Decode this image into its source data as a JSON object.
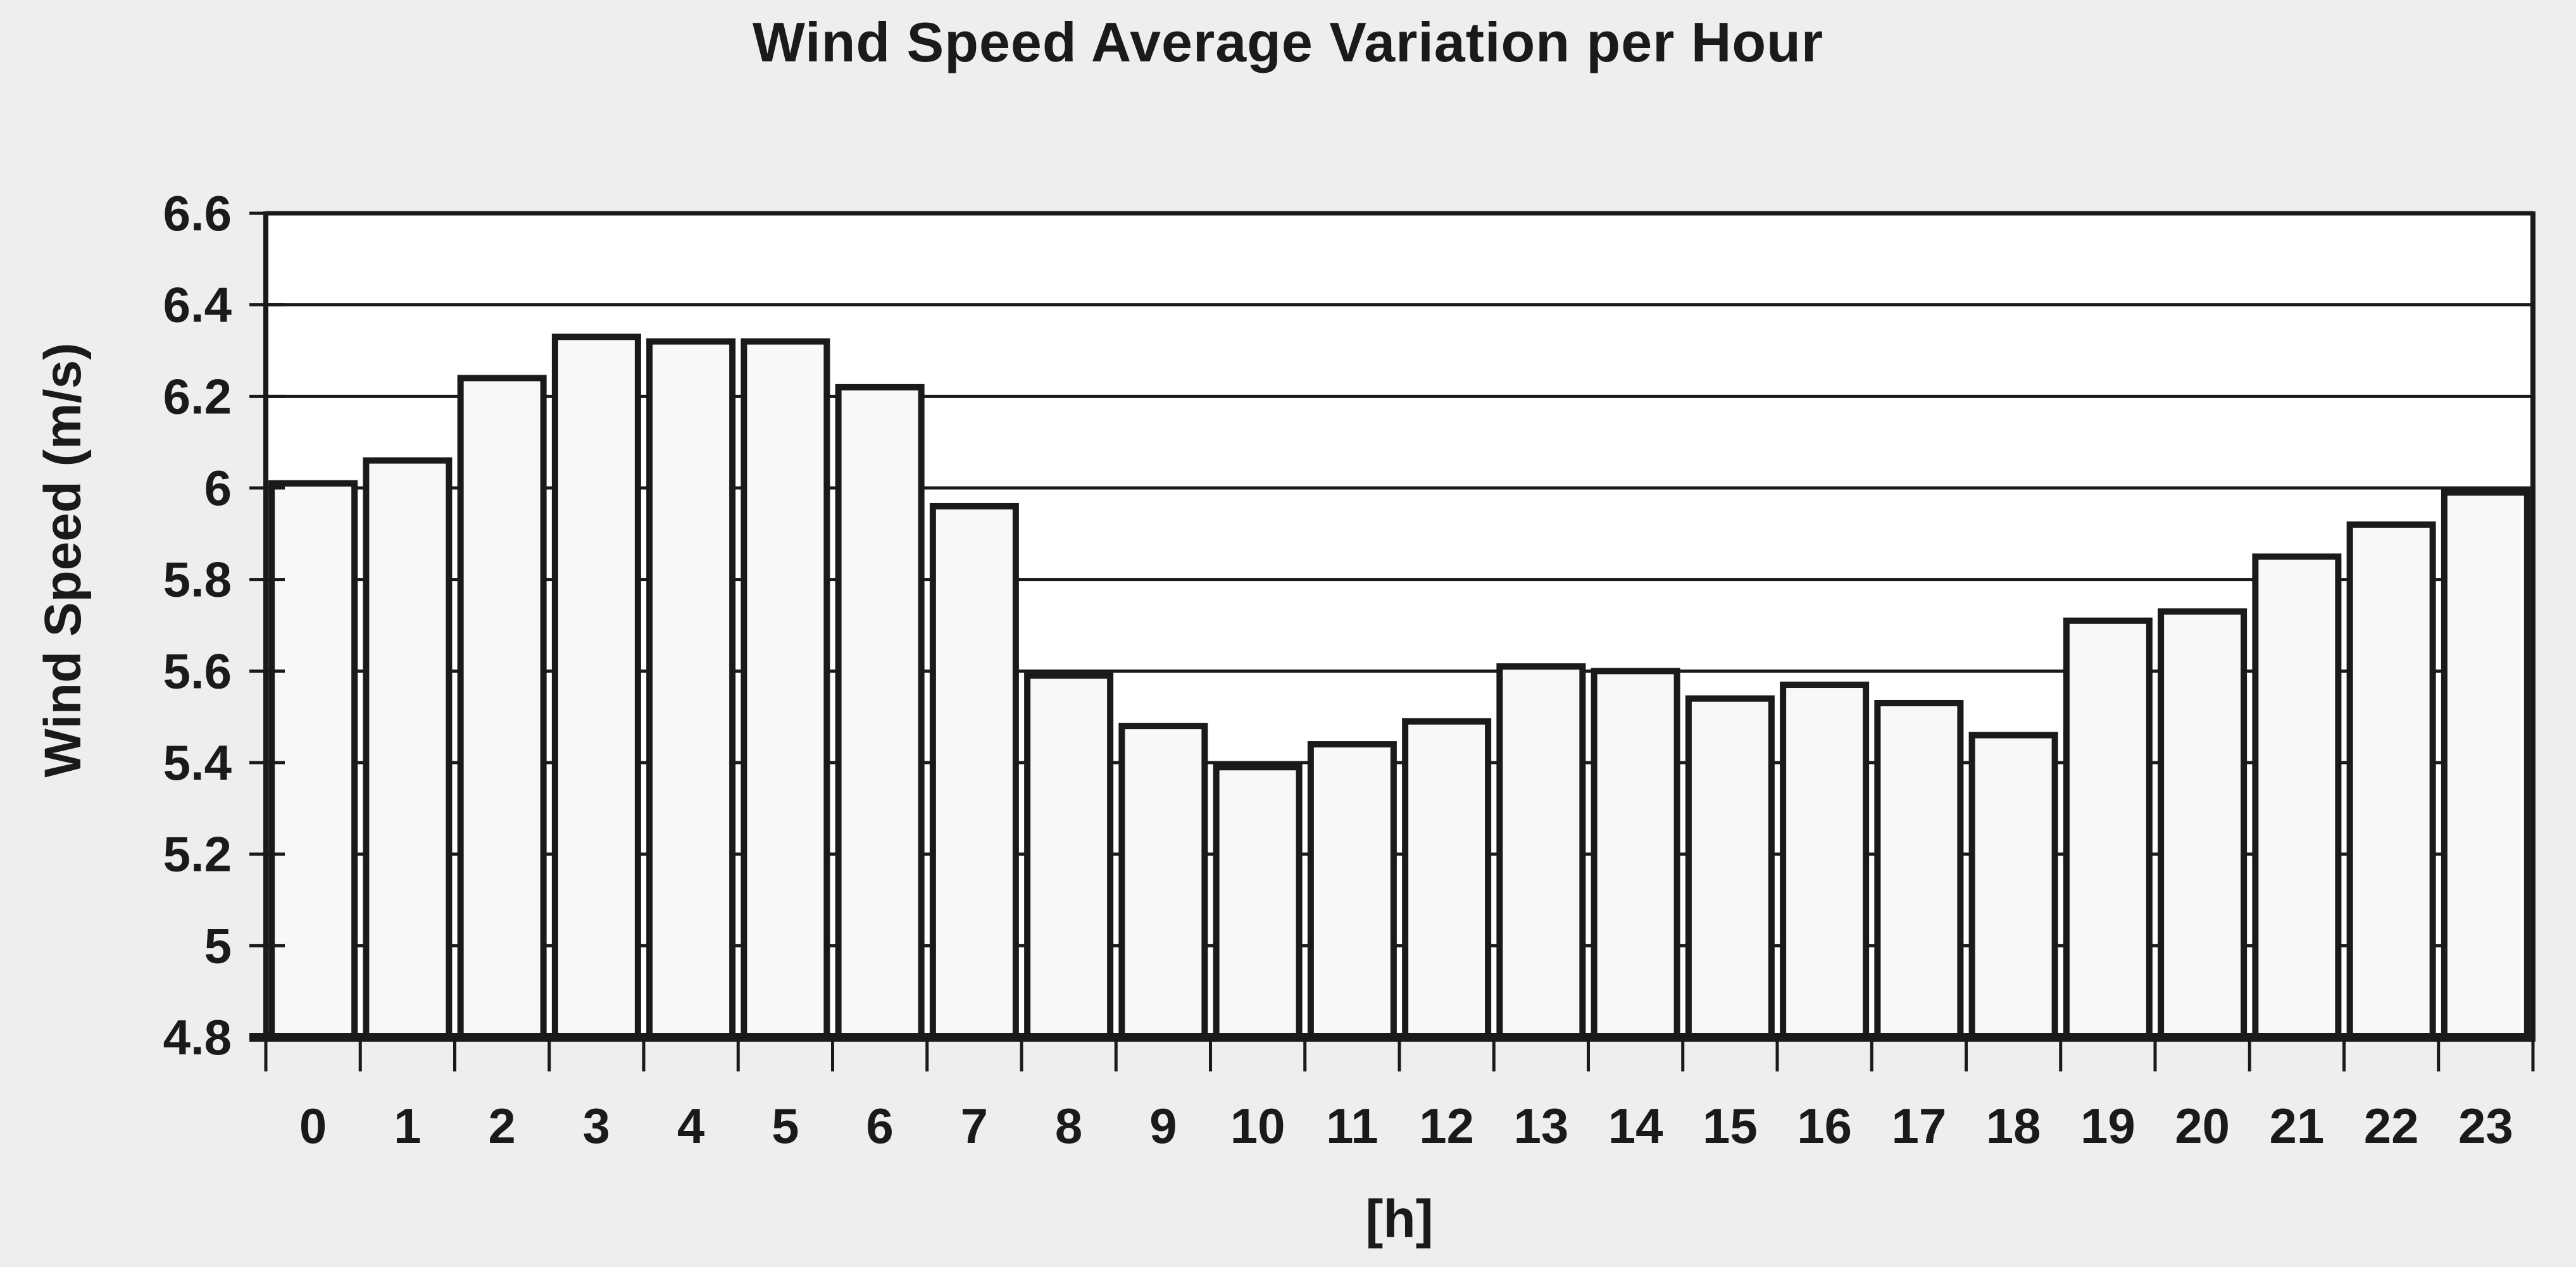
{
  "chart_data": {
    "type": "bar",
    "title": "Wind Speed Average Variation per Hour",
    "xlabel": "[h]",
    "ylabel": "Wind Speed (m/s)",
    "categories": [
      "0",
      "1",
      "2",
      "3",
      "4",
      "5",
      "6",
      "7",
      "8",
      "9",
      "10",
      "11",
      "12",
      "13",
      "14",
      "15",
      "16",
      "17",
      "18",
      "19",
      "20",
      "21",
      "22",
      "23"
    ],
    "values": [
      6.01,
      6.06,
      6.24,
      6.33,
      6.32,
      6.32,
      6.22,
      5.96,
      5.59,
      5.48,
      5.39,
      5.44,
      5.49,
      5.61,
      5.6,
      5.54,
      5.57,
      5.53,
      5.46,
      5.71,
      5.73,
      5.85,
      5.92,
      5.99
    ],
    "ylim": [
      4.8,
      6.6
    ],
    "ytick_step": 0.2,
    "ytick_values": [
      6.6,
      6.4,
      6.2,
      6.0,
      5.8,
      5.6,
      5.4,
      5.2,
      5.0,
      4.8
    ],
    "ytick_labels": [
      "6.6",
      "6.4",
      "6.2",
      "6",
      "5.8",
      "5.6",
      "5.4",
      "5.2",
      "5",
      "4.8"
    ],
    "grid": true,
    "legend": false,
    "colors": {
      "background": "#eeeeee",
      "plot_background": "#ffffff",
      "bar_fill": "#f8f8f8",
      "bar_stroke": "#1a1a1a",
      "grid_color": "#1a1a1a",
      "text_color": "#1a1a1a"
    }
  }
}
